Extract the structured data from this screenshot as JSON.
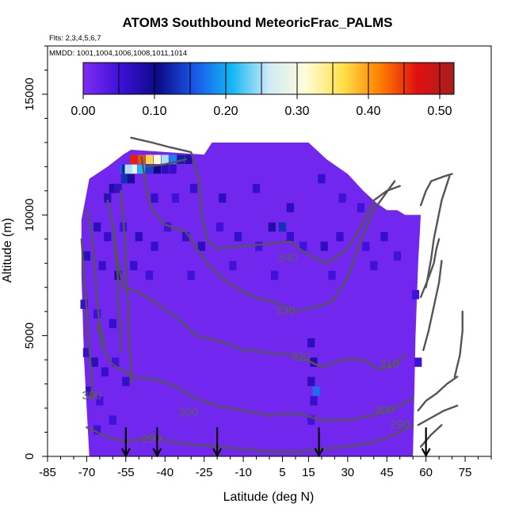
{
  "chart_data": {
    "type": "heatmap",
    "title": "ATOM3 Southbound MeteoricFrac_PALMS",
    "notes": [
      "Flts: 2,3,4,5,6,7",
      "MMDD: 1001,1004,1006,1008,1011,1014"
    ],
    "xlabel": "Latitude (deg N)",
    "ylabel": "Altitude (m)",
    "xlim": [
      -85,
      85
    ],
    "ylim": [
      0,
      17000
    ],
    "x_tick_labels": [
      "-85",
      "-70",
      "-55",
      "-40",
      "-25",
      "-10",
      "5",
      "15",
      "30",
      "45",
      "60",
      "75"
    ],
    "x_tick_values": [
      -85,
      -70,
      -55,
      -40,
      -25,
      -10,
      5,
      15,
      30,
      45,
      60,
      75
    ],
    "y_tick_labels": [
      "0",
      "5000",
      "10000",
      "15000"
    ],
    "y_tick_values": [
      0,
      5000,
      10000,
      15000
    ],
    "colorbar": {
      "range": [
        0,
        0.52
      ],
      "tick_values": [
        0,
        0.1,
        0.2,
        0.3,
        0.4,
        0.5
      ],
      "tick_labels": [
        "0.00",
        "0.10",
        "0.20",
        "0.30",
        "0.40",
        "0.50"
      ]
    },
    "color_stops": [
      "#7f2cf3",
      "#3d10d8",
      "#0b0a85",
      "#1a56e8",
      "#12b6f4",
      "#cfeaf7",
      "#fffcd8",
      "#ffe04a",
      "#ff8000",
      "#e01010",
      "#a61e1e"
    ],
    "background_value": 0.01,
    "data_envelope": [
      [
        -69,
        0
      ],
      [
        -71,
        4000
      ],
      [
        -72,
        7500
      ],
      [
        -72,
        9800
      ],
      [
        -69,
        11500
      ],
      [
        -62,
        12000
      ],
      [
        -56,
        12500
      ],
      [
        -53,
        12700
      ],
      [
        -25,
        12500
      ],
      [
        -22,
        13000
      ],
      [
        15,
        13000
      ],
      [
        22,
        12300
      ],
      [
        30,
        11700
      ],
      [
        36,
        11000
      ],
      [
        41,
        10500
      ],
      [
        45,
        10200
      ],
      [
        49,
        10200
      ],
      [
        52,
        10000
      ],
      [
        58,
        10000
      ],
      [
        57,
        8000
      ],
      [
        56,
        5000
      ],
      [
        55,
        0
      ]
    ],
    "high_value_cells": [
      {
        "lat": -52,
        "alt": 12300,
        "value": 0.46
      },
      {
        "lat": -49,
        "alt": 12300,
        "value": 0.44
      },
      {
        "lat": -46,
        "alt": 12300,
        "value": 0.37
      },
      {
        "lat": -43,
        "alt": 12300,
        "value": 0.31
      },
      {
        "lat": -40,
        "alt": 12300,
        "value": 0.25
      },
      {
        "lat": -37,
        "alt": 12300,
        "value": 0.18
      },
      {
        "lat": -34,
        "alt": 12300,
        "value": 0.12
      },
      {
        "lat": -31,
        "alt": 12300,
        "value": 0.08
      },
      {
        "lat": -52,
        "alt": 11900,
        "value": 0.28
      },
      {
        "lat": -49,
        "alt": 11900,
        "value": 0.21
      },
      {
        "lat": -46,
        "alt": 11900,
        "value": 0.14
      },
      {
        "lat": -43,
        "alt": 11900,
        "value": 0.1
      },
      {
        "lat": -40,
        "alt": 11900,
        "value": 0.07
      },
      {
        "lat": -37,
        "alt": 11900,
        "value": 0.06
      },
      {
        "lat": -56,
        "alt": 11900,
        "value": 0.16
      },
      {
        "lat": -55,
        "alt": 11900,
        "value": 0.12
      },
      {
        "lat": -54,
        "alt": 11900,
        "value": 0.25
      },
      {
        "lat": -55.5,
        "alt": 11500,
        "value": 0.13
      },
      {
        "lat": -53,
        "alt": 11500,
        "value": 0.09
      },
      {
        "lat": -60,
        "alt": 11100,
        "value": 0.08
      },
      {
        "lat": -58,
        "alt": 11100,
        "value": 0.06
      },
      {
        "lat": -62,
        "alt": 10700,
        "value": 0.07
      },
      {
        "lat": -44,
        "alt": 10700,
        "value": 0.06
      },
      {
        "lat": -36,
        "alt": 10700,
        "value": 0.05
      },
      {
        "lat": -29,
        "alt": 11100,
        "value": 0.06
      },
      {
        "lat": -18,
        "alt": 10700,
        "value": 0.07
      },
      {
        "lat": -5,
        "alt": 11100,
        "value": 0.06
      },
      {
        "lat": 8,
        "alt": 10300,
        "value": 0.07
      },
      {
        "lat": 20,
        "alt": 11500,
        "value": 0.06
      },
      {
        "lat": 28,
        "alt": 10700,
        "value": 0.05
      },
      {
        "lat": 35,
        "alt": 10300,
        "value": 0.05
      },
      {
        "lat": -66,
        "alt": 9500,
        "value": 0.07
      },
      {
        "lat": -62,
        "alt": 9100,
        "value": 0.06
      },
      {
        "lat": -56,
        "alt": 9500,
        "value": 0.05
      },
      {
        "lat": -50,
        "alt": 9100,
        "value": 0.07
      },
      {
        "lat": -44,
        "alt": 8700,
        "value": 0.06
      },
      {
        "lat": -39,
        "alt": 9500,
        "value": 0.05
      },
      {
        "lat": -32,
        "alt": 9100,
        "value": 0.06
      },
      {
        "lat": -26,
        "alt": 8700,
        "value": 0.07
      },
      {
        "lat": -19,
        "alt": 9500,
        "value": 0.05
      },
      {
        "lat": -12,
        "alt": 9100,
        "value": 0.06
      },
      {
        "lat": -4,
        "alt": 8700,
        "value": 0.05
      },
      {
        "lat": 1,
        "alt": 9500,
        "value": 0.08
      },
      {
        "lat": 5,
        "alt": 9500,
        "value": 0.13
      },
      {
        "lat": 8,
        "alt": 9100,
        "value": 0.06
      },
      {
        "lat": 13,
        "alt": 8700,
        "value": 0.05
      },
      {
        "lat": 21,
        "alt": 8700,
        "value": 0.07
      },
      {
        "lat": 27,
        "alt": 9100,
        "value": 0.06
      },
      {
        "lat": 37,
        "alt": 8700,
        "value": 0.05
      },
      {
        "lat": 44,
        "alt": 9100,
        "value": 0.06
      },
      {
        "lat": 49,
        "alt": 8300,
        "value": 0.05
      },
      {
        "lat": -70,
        "alt": 8300,
        "value": 0.07
      },
      {
        "lat": -64,
        "alt": 7900,
        "value": 0.06
      },
      {
        "lat": -58,
        "alt": 7500,
        "value": 0.08
      },
      {
        "lat": -52,
        "alt": 7900,
        "value": 0.06
      },
      {
        "lat": -46,
        "alt": 7500,
        "value": 0.05
      },
      {
        "lat": -30,
        "alt": 7500,
        "value": 0.05
      },
      {
        "lat": -14,
        "alt": 7900,
        "value": 0.05
      },
      {
        "lat": 2,
        "alt": 7500,
        "value": 0.05
      },
      {
        "lat": 24,
        "alt": 7500,
        "value": 0.05
      },
      {
        "lat": 40,
        "alt": 7900,
        "value": 0.05
      },
      {
        "lat": -71,
        "alt": 6300,
        "value": 0.06
      },
      {
        "lat": -66,
        "alt": 5900,
        "value": 0.05
      },
      {
        "lat": -60,
        "alt": 5500,
        "value": 0.06
      },
      {
        "lat": -70,
        "alt": 4300,
        "value": 0.06
      },
      {
        "lat": -67,
        "alt": 3900,
        "value": 0.07
      },
      {
        "lat": -63,
        "alt": 3500,
        "value": 0.06
      },
      {
        "lat": -59,
        "alt": 3900,
        "value": 0.05
      },
      {
        "lat": -55,
        "alt": 3100,
        "value": 0.06
      },
      {
        "lat": -69,
        "alt": 2700,
        "value": 0.06
      },
      {
        "lat": -65,
        "alt": 2300,
        "value": 0.05
      },
      {
        "lat": -60,
        "alt": 1500,
        "value": 0.05
      },
      {
        "lat": -66,
        "alt": 1100,
        "value": 0.05
      },
      {
        "lat": 16,
        "alt": 4700,
        "value": 0.07
      },
      {
        "lat": 17,
        "alt": 3900,
        "value": 0.08
      },
      {
        "lat": 16,
        "alt": 3100,
        "value": 0.07
      },
      {
        "lat": 18,
        "alt": 2700,
        "value": 0.17
      },
      {
        "lat": 17,
        "alt": 2300,
        "value": 0.06
      },
      {
        "lat": 16,
        "alt": 1500,
        "value": 0.05
      },
      {
        "lat": 57,
        "alt": 3900,
        "value": 0.05
      },
      {
        "lat": 56,
        "alt": 6700,
        "value": 0.05
      }
    ],
    "contour_labels": [
      {
        "text": "340",
        "lat": 7,
        "alt": 8200
      },
      {
        "text": "330",
        "lat": 6,
        "alt": 6000
      },
      {
        "text": "320",
        "lat": 12,
        "alt": 4100
      },
      {
        "text": "310",
        "lat": 46,
        "alt": 3800
      },
      {
        "text": "300",
        "lat": -31,
        "alt": 1800
      },
      {
        "text": "300",
        "lat": 44,
        "alt": 1900
      },
      {
        "text": "290",
        "lat": -45,
        "alt": 700
      },
      {
        "text": "290",
        "lat": 50,
        "alt": 1300
      },
      {
        "text": "300",
        "lat": -68,
        "alt": 2500
      }
    ],
    "contour_lines": [
      [
        [
          -53,
          13200
        ],
        [
          -45,
          13000
        ],
        [
          -38,
          12800
        ],
        [
          -30,
          12600
        ],
        [
          -27,
          11500
        ],
        [
          -26,
          10000
        ],
        [
          -24,
          9000
        ],
        [
          -20,
          8600
        ],
        [
          -12,
          8700
        ],
        [
          0,
          8800
        ],
        [
          8,
          8900
        ],
        [
          14,
          8400
        ],
        [
          22,
          8000
        ],
        [
          30,
          8600
        ],
        [
          36,
          9700
        ],
        [
          40,
          10600
        ],
        [
          45,
          11000
        ],
        [
          50,
          11200
        ]
      ],
      [
        [
          -49,
          12400
        ],
        [
          -47,
          11000
        ],
        [
          -45,
          10200
        ],
        [
          -40,
          9600
        ],
        [
          -32,
          9300
        ],
        [
          -24,
          8000
        ],
        [
          -16,
          7200
        ],
        [
          -6,
          6600
        ],
        [
          2,
          6400
        ],
        [
          10,
          6000
        ],
        [
          18,
          6200
        ],
        [
          24,
          6400
        ],
        [
          30,
          7400
        ],
        [
          36,
          9200
        ],
        [
          40,
          10200
        ],
        [
          44,
          10800
        ],
        [
          48,
          11400
        ]
      ],
      [
        [
          -60,
          9600
        ],
        [
          -58,
          8000
        ],
        [
          -56,
          7000
        ],
        [
          -50,
          6800
        ],
        [
          -44,
          6400
        ],
        [
          -36,
          5800
        ],
        [
          -28,
          5000
        ],
        [
          -20,
          4800
        ],
        [
          -10,
          4400
        ],
        [
          0,
          4300
        ],
        [
          8,
          4200
        ],
        [
          14,
          4000
        ],
        [
          20,
          3700
        ],
        [
          28,
          4000
        ],
        [
          36,
          4000
        ],
        [
          42,
          3600
        ],
        [
          48,
          3800
        ],
        [
          52,
          4200
        ]
      ],
      [
        [
          -66,
          5500
        ],
        [
          -64,
          4500
        ],
        [
          -60,
          3800
        ],
        [
          -52,
          3300
        ],
        [
          -44,
          3200
        ],
        [
          -36,
          2900
        ],
        [
          -28,
          2400
        ],
        [
          -20,
          2100
        ],
        [
          -10,
          1900
        ],
        [
          0,
          1700
        ],
        [
          10,
          1800
        ],
        [
          20,
          1500
        ],
        [
          30,
          1500
        ],
        [
          40,
          1700
        ],
        [
          48,
          2000
        ],
        [
          55,
          2400
        ]
      ],
      [
        [
          -70,
          1200
        ],
        [
          -64,
          900
        ],
        [
          -56,
          600
        ],
        [
          -50,
          700
        ],
        [
          -44,
          800
        ],
        [
          -38,
          600
        ],
        [
          -30,
          500
        ],
        [
          -20,
          400
        ],
        [
          -10,
          300
        ],
        [
          0,
          200
        ],
        [
          10,
          200
        ],
        [
          20,
          300
        ],
        [
          30,
          400
        ],
        [
          40,
          600
        ],
        [
          48,
          900
        ],
        [
          55,
          1300
        ]
      ],
      [
        [
          -47,
          12000
        ],
        [
          -40,
          12100
        ],
        [
          -32,
          12300
        ]
      ],
      [
        [
          -70,
          10200
        ],
        [
          -68,
          9200
        ],
        [
          -67,
          7800
        ],
        [
          -66,
          6500
        ],
        [
          -65,
          5400
        ],
        [
          -63,
          4600
        ]
      ],
      [
        [
          -62,
          10600
        ],
        [
          -60,
          9600
        ],
        [
          -59,
          8500
        ],
        [
          -58,
          7400
        ],
        [
          -58,
          6300
        ],
        [
          -57,
          5300
        ],
        [
          -57,
          4300
        ]
      ],
      [
        [
          -57,
          11000
        ],
        [
          -56,
          9800
        ],
        [
          -55,
          8600
        ],
        [
          -55,
          7400
        ],
        [
          -54,
          6200
        ],
        [
          -54,
          5100
        ],
        [
          -53,
          4000
        ],
        [
          -53,
          3000
        ]
      ],
      [
        [
          -72,
          9000
        ],
        [
          -71,
          7500
        ],
        [
          -70,
          6000
        ],
        [
          -69,
          4500
        ],
        [
          -68,
          3200
        ],
        [
          -68,
          2400
        ]
      ],
      [
        [
          58,
          10400
        ],
        [
          60,
          11000
        ],
        [
          62,
          11400
        ]
      ],
      [
        [
          58,
          6600
        ],
        [
          61,
          7400
        ],
        [
          63,
          8000
        ],
        [
          64,
          8600
        ],
        [
          65,
          9000
        ]
      ],
      [
        [
          60,
          7000
        ],
        [
          62,
          8200
        ],
        [
          63,
          9000
        ],
        [
          66,
          10600
        ],
        [
          69,
          11600
        ]
      ],
      [
        [
          59,
          4400
        ],
        [
          61,
          5200
        ],
        [
          63,
          6200
        ],
        [
          65,
          7200
        ],
        [
          66,
          8100
        ]
      ],
      [
        [
          57,
          1900
        ],
        [
          60,
          2300
        ],
        [
          64,
          2600
        ],
        [
          68,
          3000
        ],
        [
          72,
          3300
        ]
      ],
      [
        [
          57,
          1300
        ],
        [
          62,
          1600
        ],
        [
          67,
          1900
        ],
        [
          72,
          2100
        ]
      ],
      [
        [
          58,
          400
        ],
        [
          62,
          900
        ],
        [
          66,
          1300
        ]
      ],
      [
        [
          62,
          11400
        ],
        [
          67,
          11600
        ],
        [
          70,
          11700
        ]
      ],
      [
        [
          71,
          3300
        ],
        [
          73,
          4200
        ],
        [
          74,
          5200
        ],
        [
          74,
          6000
        ]
      ]
    ],
    "arrows_lat": [
      -55,
      -43,
      -20,
      19,
      60
    ]
  }
}
